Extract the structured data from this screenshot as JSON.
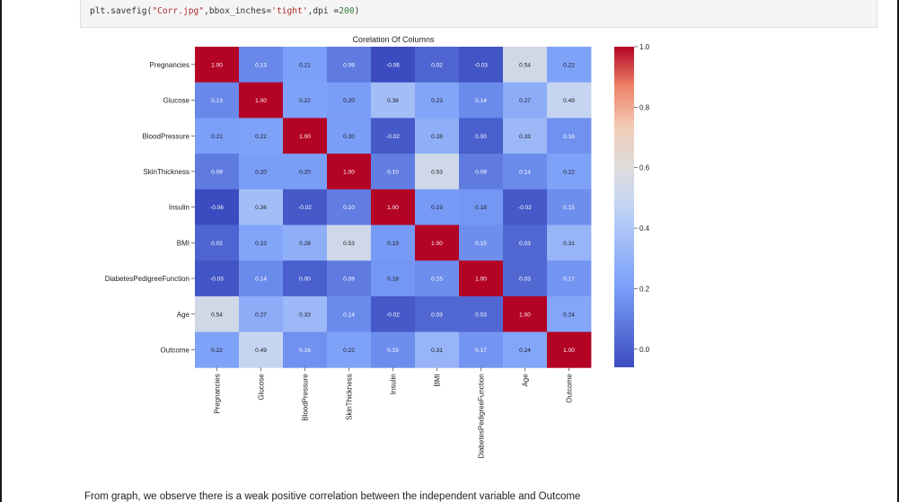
{
  "code_cell": {
    "prefix": "plt.savefig(",
    "filename": "\"Corr.jpg\"",
    "middle": ",bbox_inches=",
    "bbox_value": "'tight'",
    "dpi_part": ",dpi =",
    "dpi_value": "200",
    "suffix": ")"
  },
  "chart_data": {
    "type": "heatmap",
    "title": "Corelation Of Columns",
    "xlabel": "",
    "ylabel": "",
    "row_labels": [
      "Pregnancies",
      "Glucose",
      "BloodPressure",
      "SkinThickness",
      "Insulin",
      "BMI",
      "DiabetesPedigreeFunction",
      "Age",
      "Outcome"
    ],
    "col_labels": [
      "Pregnancies",
      "Glucose",
      "BloodPressure",
      "SkinThickness",
      "Insulin",
      "BMI",
      "DiabetesPedigreeFunction",
      "Age",
      "Outcome"
    ],
    "values": [
      [
        1.0,
        0.13,
        0.21,
        0.09,
        -0.06,
        0.02,
        -0.03,
        0.54,
        0.22
      ],
      [
        0.13,
        1.0,
        0.22,
        0.2,
        0.36,
        0.23,
        0.14,
        0.27,
        0.49
      ],
      [
        0.21,
        0.22,
        1.0,
        0.2,
        -0.02,
        0.28,
        0.0,
        0.33,
        0.16
      ],
      [
        0.09,
        0.2,
        0.2,
        1.0,
        0.1,
        0.53,
        0.09,
        0.14,
        0.22
      ],
      [
        -0.06,
        0.36,
        -0.02,
        0.1,
        1.0,
        0.19,
        0.18,
        -0.02,
        0.15
      ],
      [
        0.02,
        0.23,
        0.28,
        0.53,
        0.19,
        1.0,
        0.15,
        0.03,
        0.31
      ],
      [
        -0.03,
        0.14,
        0.0,
        0.09,
        0.18,
        0.15,
        1.0,
        0.03,
        0.17
      ],
      [
        0.54,
        0.27,
        0.33,
        0.14,
        -0.02,
        0.03,
        0.03,
        1.0,
        0.24
      ],
      [
        0.22,
        0.49,
        0.16,
        0.22,
        0.15,
        0.31,
        0.17,
        0.24,
        1.0
      ]
    ],
    "value_format": "2dp",
    "colormap": "coolwarm",
    "vmin": -0.06,
    "vmax": 1.0,
    "colorbar_ticks": [
      0.0,
      0.2,
      0.4,
      0.6,
      0.8,
      1.0
    ],
    "colorbar_tick_labels": [
      "0.0",
      "0.2",
      "0.4",
      "0.6",
      "0.8",
      "1.0"
    ]
  },
  "markdown_text": "From graph, we observe there is a weak positive correlation between the independent variable and Outcome"
}
